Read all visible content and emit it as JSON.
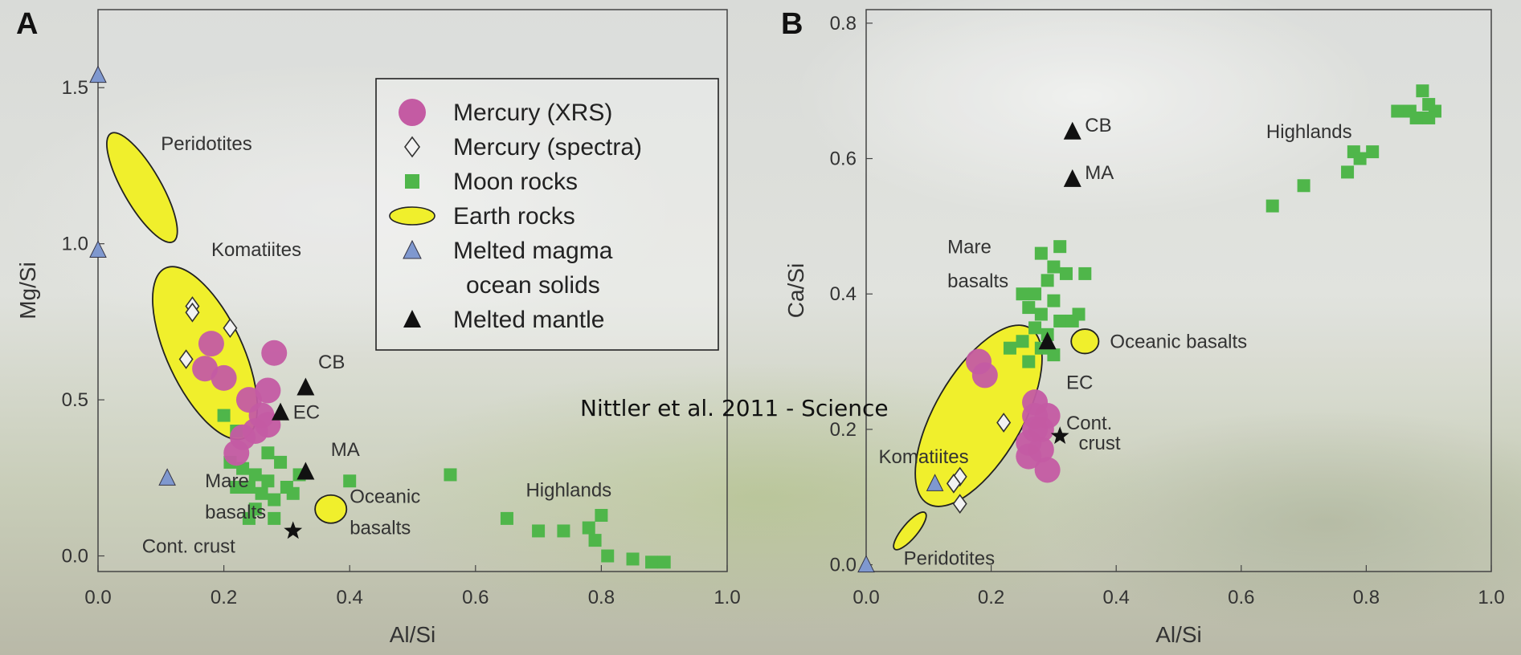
{
  "caption": "Nittler et al. 2011 - Science",
  "colors": {
    "mercury_xrs": "#c45ba3",
    "moon": "#4fb64a",
    "earth": "#f0ef2c",
    "magma": "#7f98cf",
    "mantle": "#111111"
  },
  "legend": {
    "items": [
      {
        "label": "Mercury (XRS)",
        "icon": "magenta-circle"
      },
      {
        "label": "Mercury (spectra)",
        "icon": "open-diamond"
      },
      {
        "label": "Moon rocks",
        "icon": "green-square"
      },
      {
        "label": "Earth rocks",
        "icon": "yellow-ellipse"
      },
      {
        "label": "Melted magma",
        "icon": "blue-triangle"
      },
      {
        "label": "ocean solids",
        "icon": ""
      },
      {
        "label": "Melted mantle",
        "icon": "black-triangle"
      }
    ]
  },
  "chart_data": [
    {
      "panel": "A",
      "type": "scatter",
      "xlabel": "Al/Si",
      "ylabel": "Mg/Si",
      "xlim": [
        0,
        1.0
      ],
      "ylim": [
        -0.05,
        1.75
      ],
      "xticks": [
        "0.0",
        "0.2",
        "0.4",
        "0.6",
        "0.8",
        "1.0"
      ],
      "yticks": [
        "0.0",
        "0.5",
        "1.0",
        "1.5"
      ],
      "ytick_values": [
        0,
        0.5,
        1.0,
        1.5
      ],
      "xtick_values": [
        0,
        0.2,
        0.4,
        0.6,
        0.8,
        1.0
      ],
      "series": [
        {
          "name": "Mercury (XRS)",
          "marker": "circle",
          "points": [
            [
              0.18,
              0.68
            ],
            [
              0.17,
              0.6
            ],
            [
              0.2,
              0.57
            ],
            [
              0.28,
              0.65
            ],
            [
              0.27,
              0.53
            ],
            [
              0.24,
              0.5
            ],
            [
              0.26,
              0.45
            ],
            [
              0.25,
              0.4
            ],
            [
              0.23,
              0.38
            ],
            [
              0.22,
              0.33
            ],
            [
              0.27,
              0.42
            ]
          ]
        },
        {
          "name": "Mercury (spectra)",
          "marker": "diamond",
          "points": [
            [
              0.15,
              0.8
            ],
            [
              0.15,
              0.78
            ],
            [
              0.14,
              0.63
            ],
            [
              0.21,
              0.73
            ]
          ]
        },
        {
          "name": "Moon rocks",
          "marker": "square",
          "points": [
            [
              0.2,
              0.45
            ],
            [
              0.22,
              0.4
            ],
            [
              0.21,
              0.3
            ],
            [
              0.23,
              0.28
            ],
            [
              0.25,
              0.26
            ],
            [
              0.27,
              0.24
            ],
            [
              0.24,
              0.22
            ],
            [
              0.26,
              0.2
            ],
            [
              0.28,
              0.18
            ],
            [
              0.3,
              0.22
            ],
            [
              0.32,
              0.26
            ],
            [
              0.29,
              0.3
            ],
            [
              0.27,
              0.33
            ],
            [
              0.22,
              0.22
            ],
            [
              0.25,
              0.15
            ],
            [
              0.28,
              0.12
            ],
            [
              0.24,
              0.12
            ],
            [
              0.31,
              0.2
            ],
            [
              0.4,
              0.24
            ],
            [
              0.56,
              0.26
            ],
            [
              0.65,
              0.12
            ],
            [
              0.7,
              0.08
            ],
            [
              0.74,
              0.08
            ],
            [
              0.78,
              0.09
            ],
            [
              0.79,
              0.05
            ],
            [
              0.8,
              0.13
            ],
            [
              0.81,
              0.0
            ],
            [
              0.85,
              -0.01
            ],
            [
              0.88,
              -0.02
            ],
            [
              0.9,
              -0.02
            ]
          ]
        },
        {
          "name": "Melted magma ocean solids",
          "marker": "triangle-blue",
          "points": [
            [
              0.0,
              1.54
            ],
            [
              0.0,
              0.98
            ],
            [
              0.11,
              0.25
            ]
          ]
        },
        {
          "name": "Melted mantle",
          "marker": "triangle-black",
          "points": [
            [
              0.33,
              0.54
            ],
            [
              0.29,
              0.46
            ],
            [
              0.33,
              0.27
            ]
          ]
        },
        {
          "name": "Cont. crust",
          "marker": "star",
          "points": [
            [
              0.31,
              0.08
            ]
          ]
        }
      ],
      "ellipses": [
        {
          "name": "Peridotites",
          "center": [
            0.07,
            1.18
          ],
          "rx": 0.03,
          "ry": 0.2,
          "tilt": -30
        },
        {
          "name": "Komatiites",
          "center": [
            0.17,
            0.65
          ],
          "rx": 0.06,
          "ry": 0.3,
          "tilt": -25
        },
        {
          "name": "Oceanic basalts",
          "center": [
            0.37,
            0.15
          ],
          "rx": 0.025,
          "ry": 0.045,
          "tilt": 0
        }
      ],
      "annotations": [
        {
          "text": "Peridotites",
          "at": [
            0.1,
            1.3
          ]
        },
        {
          "text": "Komatiites",
          "at": [
            0.18,
            0.96
          ]
        },
        {
          "text": "CB",
          "at": [
            0.35,
            0.6
          ]
        },
        {
          "text": "EC",
          "at": [
            0.31,
            0.44
          ]
        },
        {
          "text": "MA",
          "at": [
            0.37,
            0.32
          ]
        },
        {
          "text": "Mare",
          "at": [
            0.17,
            0.22
          ]
        },
        {
          "text": "basalts",
          "at": [
            0.17,
            0.12
          ]
        },
        {
          "text": "Cont. crust",
          "at": [
            0.07,
            0.01
          ]
        },
        {
          "text": "Oceanic",
          "at": [
            0.4,
            0.17
          ]
        },
        {
          "text": "basalts",
          "at": [
            0.4,
            0.07
          ]
        },
        {
          "text": "Highlands",
          "at": [
            0.68,
            0.19
          ]
        }
      ]
    },
    {
      "panel": "B",
      "type": "scatter",
      "xlabel": "Al/Si",
      "ylabel": "Ca/Si",
      "xlim": [
        0,
        1.0
      ],
      "ylim": [
        -0.01,
        0.82
      ],
      "xticks": [
        "0.0",
        "0.2",
        "0.4",
        "0.6",
        "0.8",
        "1.0"
      ],
      "yticks": [
        "0.0",
        "0.2",
        "0.4",
        "0.6",
        "0.8"
      ],
      "ytick_values": [
        0,
        0.2,
        0.4,
        0.6,
        0.8
      ],
      "xtick_values": [
        0,
        0.2,
        0.4,
        0.6,
        0.8,
        1.0
      ],
      "series": [
        {
          "name": "Mercury (XRS)",
          "marker": "circle",
          "points": [
            [
              0.18,
              0.3
            ],
            [
              0.19,
              0.28
            ],
            [
              0.27,
              0.2
            ],
            [
              0.27,
              0.22
            ],
            [
              0.28,
              0.2
            ],
            [
              0.29,
              0.22
            ],
            [
              0.26,
              0.18
            ],
            [
              0.26,
              0.16
            ],
            [
              0.28,
              0.17
            ],
            [
              0.29,
              0.14
            ],
            [
              0.27,
              0.24
            ]
          ]
        },
        {
          "name": "Mercury (spectra)",
          "marker": "diamond",
          "points": [
            [
              0.22,
              0.21
            ],
            [
              0.15,
              0.13
            ],
            [
              0.14,
              0.12
            ],
            [
              0.15,
              0.09
            ]
          ]
        },
        {
          "name": "Moon rocks",
          "marker": "square",
          "points": [
            [
              0.28,
              0.46
            ],
            [
              0.31,
              0.47
            ],
            [
              0.3,
              0.44
            ],
            [
              0.29,
              0.42
            ],
            [
              0.32,
              0.43
            ],
            [
              0.27,
              0.4
            ],
            [
              0.25,
              0.4
            ],
            [
              0.26,
              0.38
            ],
            [
              0.28,
              0.37
            ],
            [
              0.3,
              0.39
            ],
            [
              0.31,
              0.36
            ],
            [
              0.29,
              0.34
            ],
            [
              0.27,
              0.35
            ],
            [
              0.25,
              0.33
            ],
            [
              0.23,
              0.32
            ],
            [
              0.28,
              0.32
            ],
            [
              0.33,
              0.36
            ],
            [
              0.34,
              0.37
            ],
            [
              0.35,
              0.43
            ],
            [
              0.3,
              0.31
            ],
            [
              0.26,
              0.3
            ],
            [
              0.65,
              0.53
            ],
            [
              0.7,
              0.56
            ],
            [
              0.77,
              0.58
            ],
            [
              0.78,
              0.61
            ],
            [
              0.79,
              0.6
            ],
            [
              0.81,
              0.61
            ],
            [
              0.85,
              0.67
            ],
            [
              0.87,
              0.67
            ],
            [
              0.89,
              0.7
            ],
            [
              0.9,
              0.68
            ],
            [
              0.91,
              0.67
            ],
            [
              0.88,
              0.66
            ],
            [
              0.9,
              0.66
            ]
          ]
        },
        {
          "name": "Melted magma ocean solids",
          "marker": "triangle-blue",
          "points": [
            [
              0.0,
              0.0
            ],
            [
              0.11,
              0.12
            ]
          ]
        },
        {
          "name": "Melted mantle",
          "marker": "triangle-black",
          "points": [
            [
              0.33,
              0.64
            ],
            [
              0.33,
              0.57
            ],
            [
              0.29,
              0.33
            ]
          ]
        },
        {
          "name": "Cont. crust",
          "marker": "star",
          "points": [
            [
              0.31,
              0.19
            ]
          ]
        }
      ],
      "ellipses": [
        {
          "name": "Peridotites",
          "center": [
            0.07,
            0.05
          ],
          "rx": 0.012,
          "ry": 0.035,
          "tilt": 40
        },
        {
          "name": "Komatiites",
          "center": [
            0.18,
            0.22
          ],
          "rx": 0.07,
          "ry": 0.15,
          "tilt": 30
        },
        {
          "name": "Oceanic basalts",
          "center": [
            0.35,
            0.33
          ],
          "rx": 0.022,
          "ry": 0.018,
          "tilt": 0
        }
      ],
      "annotations": [
        {
          "text": "CB",
          "at": [
            0.35,
            0.64
          ]
        },
        {
          "text": "MA",
          "at": [
            0.35,
            0.57
          ]
        },
        {
          "text": "Highlands",
          "at": [
            0.64,
            0.63
          ]
        },
        {
          "text": "Mare",
          "at": [
            0.13,
            0.46
          ]
        },
        {
          "text": "basalts",
          "at": [
            0.13,
            0.41
          ]
        },
        {
          "text": "Oceanic basalts",
          "at": [
            0.39,
            0.32
          ]
        },
        {
          "text": "EC",
          "at": [
            0.32,
            0.26
          ]
        },
        {
          "text": "Cont.",
          "at": [
            0.32,
            0.2
          ]
        },
        {
          "text": "crust",
          "at": [
            0.34,
            0.17
          ]
        },
        {
          "text": "Komatiites",
          "at": [
            0.02,
            0.15
          ]
        },
        {
          "text": "Peridotites",
          "at": [
            0.06,
            0.0
          ]
        }
      ]
    }
  ],
  "panel_labels": [
    "A",
    "B"
  ]
}
